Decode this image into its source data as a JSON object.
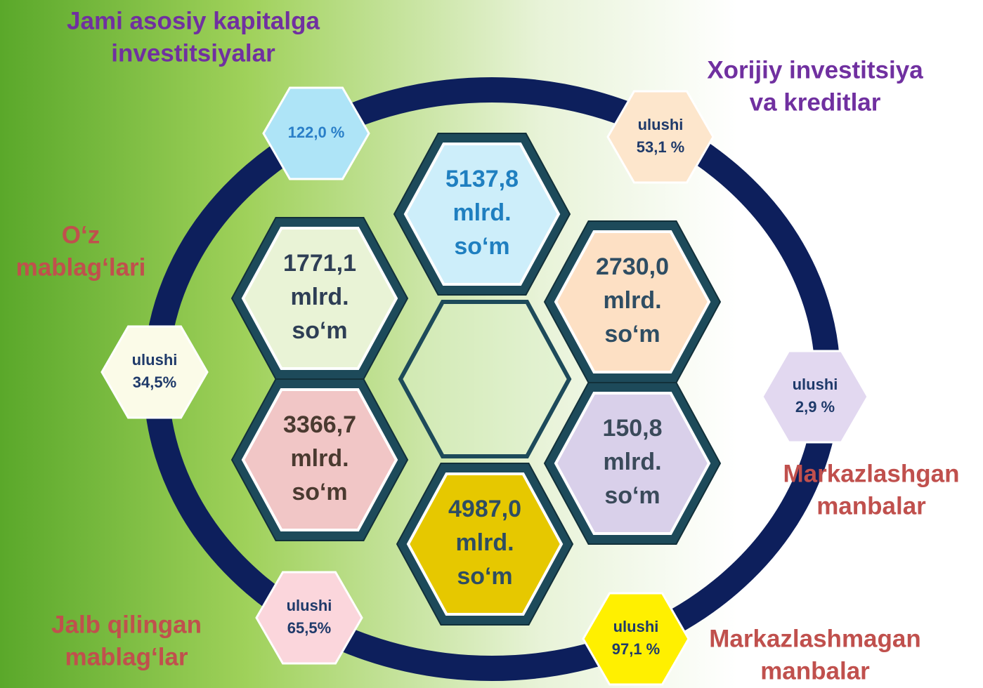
{
  "labels": {
    "total": [
      "Jami asosiy kapitalga",
      "investitsiyalar"
    ],
    "foreign": [
      "Xorijiy investitsiya",
      "va kreditlar"
    ],
    "own": [
      "O‘z",
      "mablag‘lari"
    ],
    "centralized": [
      "Markazlashgan",
      "manbalar"
    ],
    "attracted": [
      "Jalb qilingan",
      "mablag‘lar"
    ],
    "decentralized": [
      "Markazlashmagan",
      "manbalar"
    ]
  },
  "shares": {
    "total": [
      "122,0 %"
    ],
    "foreign": [
      "ulushi",
      "53,1 %"
    ],
    "own": [
      "ulushi",
      "34,5%"
    ],
    "centralized": [
      "ulushi",
      "2,9 %"
    ],
    "attracted": [
      "ulushi",
      "65,5%"
    ],
    "decentralized": [
      "ulushi",
      "97,1 %"
    ]
  },
  "amounts": {
    "total": [
      "5137,8",
      "mlrd.",
      "so‘m"
    ],
    "own": [
      "1771,1",
      "mlrd.",
      "so‘m"
    ],
    "foreign": [
      "2730,0",
      "mlrd.",
      "so‘m"
    ],
    "attracted": [
      "3366,7",
      "mlrd.",
      "so‘m"
    ],
    "centralized": [
      "150,8",
      "mlrd.",
      "so‘m"
    ],
    "decentralized": [
      "4987,0",
      "mlrd.",
      "so‘m"
    ]
  }
}
